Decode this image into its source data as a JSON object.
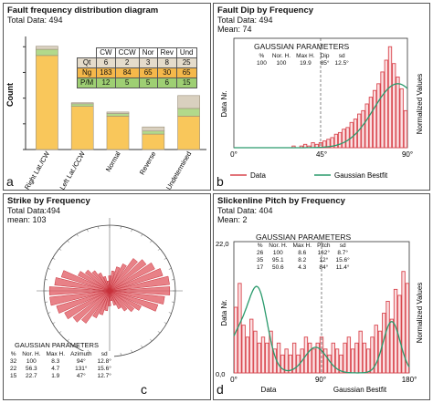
{
  "chart_data": [
    {
      "type": "bar",
      "title": "Fault frequency distribution diagram",
      "subtitle": "Total Data: 494",
      "letter": "a",
      "ylabel": "Count",
      "categories": [
        "Right Lat./CW",
        "Left Lat./CCW",
        "Normal",
        "Reverse",
        "Undetermined"
      ],
      "stack_colors": {
        "Ng": "#f9c75b",
        "P/M": "#b2d98b",
        "Qt": "#d9d0bf"
      },
      "series": [
        {
          "name": "Ng",
          "values": [
            183,
            84,
            65,
            30,
            65
          ]
        },
        {
          "name": "P/M",
          "values": [
            12,
            5,
            5,
            6,
            15
          ]
        },
        {
          "name": "Qt",
          "values": [
            6,
            2,
            3,
            8,
            25
          ]
        }
      ],
      "ylim": [
        0,
        220
      ],
      "table": {
        "columns": [
          "CW",
          "CCW",
          "Nor",
          "Rev",
          "Und"
        ],
        "rows": [
          {
            "label": "Qt",
            "values": [
              "6",
              "2",
              "3",
              "8",
              "25"
            ]
          },
          {
            "label": "Ng",
            "values": [
              "183",
              "84",
              "65",
              "30",
              "65"
            ]
          },
          {
            "label": "P/M",
            "values": [
              "12",
              "5",
              "5",
              "6",
              "15"
            ]
          }
        ]
      }
    },
    {
      "type": "bar",
      "title": "Fault Dip by Frequency",
      "subtitle1": "Total Data: 494",
      "subtitle2": "Mean: 74",
      "letter": "b",
      "ylabel": "Data Nr.",
      "ylabel_right": "Normalized Values",
      "x_ticks": [
        "0°",
        "45°",
        "90°"
      ],
      "xlim": [
        0,
        90
      ],
      "bin_width": 2,
      "bins_x": [
        30,
        32,
        34,
        36,
        38,
        40,
        42,
        44,
        46,
        48,
        50,
        52,
        54,
        56,
        58,
        60,
        62,
        64,
        66,
        68,
        70,
        72,
        74,
        76,
        78,
        80,
        82,
        84,
        86,
        88
      ],
      "bins_y": [
        1,
        0,
        1,
        2,
        1,
        3,
        2,
        3,
        4,
        5,
        6,
        8,
        9,
        11,
        12,
        15,
        17,
        20,
        22,
        26,
        30,
        34,
        38,
        45,
        52,
        60,
        50,
        42,
        35,
        22
      ],
      "ylim": [
        0,
        65
      ],
      "fit": {
        "mean": 85,
        "sd": 12.5,
        "peak": 38
      },
      "legend": [
        "Data",
        "Gaussian Bestfit"
      ],
      "gaussian": {
        "title": "GAUSSIAN PARAMETERS",
        "columns": [
          "%",
          "Nor. H.",
          "Max H.",
          "Dip",
          "sd"
        ],
        "rows": [
          [
            "100",
            "100",
            "19.9",
            "85°",
            "12.5°"
          ]
        ]
      }
    },
    {
      "type": "rose",
      "title": "Strike by Frequency",
      "subtitle1": "Total Data:494",
      "subtitle2": "mean: 103",
      "letter": "c",
      "petals_deg": [
        0,
        10,
        20,
        30,
        40,
        50,
        60,
        70,
        80,
        90,
        100,
        110,
        120,
        130,
        140,
        150,
        160,
        170
      ],
      "petals_val": [
        3,
        4,
        5,
        6,
        8,
        9,
        10,
        11,
        12,
        12,
        11,
        10,
        7,
        6,
        5,
        4,
        3,
        2
      ],
      "rmax": 12,
      "gaussian": {
        "title": "GAUSSIAN PARAMETERS",
        "columns": [
          "%",
          "Nor. H.",
          "Max H.",
          "Azimuth",
          "sd"
        ],
        "rows": [
          [
            "32",
            "100",
            "8.3",
            "94°",
            "12.8°"
          ],
          [
            "22",
            "56.3",
            "4.7",
            "131°",
            "15.6°"
          ],
          [
            "15",
            "22.7",
            "1.9",
            "47°",
            "12.7°"
          ]
        ]
      }
    },
    {
      "type": "bar",
      "title": "Slickenline Pitch by Frequency",
      "subtitle1": "Total Data: 404",
      "subtitle2": "Mean: 2",
      "letter": "d",
      "ylabel": "Data Nr.",
      "ylabel_right": "Normalized Values",
      "x_axis_label": "Data",
      "x_axis_label2": "Gaussian Bestfit",
      "x_ticks": [
        "0°",
        "90°",
        "180°"
      ],
      "y_ticks": [
        "0,0",
        "22,0"
      ],
      "xlim": [
        0,
        180
      ],
      "ylim": [
        0,
        22
      ],
      "bin_width": 4,
      "bins_x": [
        0,
        4,
        8,
        12,
        16,
        20,
        24,
        28,
        32,
        36,
        40,
        44,
        48,
        52,
        56,
        60,
        64,
        68,
        72,
        76,
        80,
        84,
        88,
        92,
        96,
        100,
        104,
        108,
        112,
        116,
        120,
        124,
        128,
        132,
        136,
        140,
        144,
        148,
        152,
        156,
        160,
        164,
        168,
        172,
        176
      ],
      "bins_y": [
        11,
        15,
        8,
        6,
        9,
        7,
        5,
        6,
        5,
        7,
        4,
        5,
        3,
        4,
        3,
        5,
        3,
        4,
        6,
        5,
        4,
        5,
        6,
        4,
        3,
        5,
        4,
        3,
        5,
        6,
        4,
        5,
        7,
        5,
        4,
        6,
        8,
        7,
        10,
        12,
        9,
        14,
        13,
        17,
        15
      ],
      "fit_components": [
        {
          "mean": 26,
          "sd": 8.7,
          "peak": 8.6
        },
        {
          "mean": 162,
          "sd": 8.7,
          "peak": 8.6
        },
        {
          "mean": 12,
          "sd": 15.6,
          "peak": 8.2
        },
        {
          "mean": 84,
          "sd": 11.4,
          "peak": 4.3
        }
      ],
      "gaussian": {
        "title": "GAUSSIAN PARAMETERS",
        "columns": [
          "%",
          "Nor. H.",
          "Max H.",
          "Pitch",
          "sd"
        ],
        "rows": [
          [
            "26",
            "100",
            "8.6",
            "162°",
            "8.7°"
          ],
          [
            "35",
            "95.1",
            "8.2",
            "12°",
            "15.6°"
          ],
          [
            "17",
            "50.6",
            "4.3",
            "84°",
            "11.4°"
          ]
        ]
      }
    }
  ]
}
